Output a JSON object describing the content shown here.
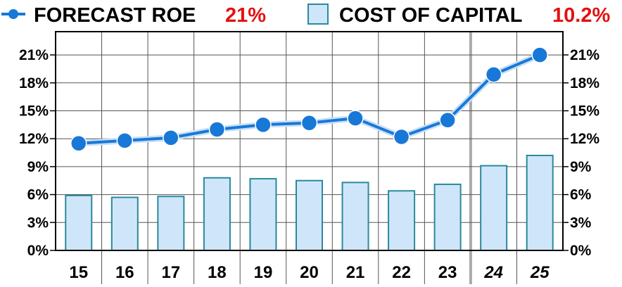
{
  "legend": {
    "roe_label": "FORECAST ROE",
    "roe_value": "21%",
    "coc_label": "COST OF CAPITAL",
    "coc_value": "10.2%"
  },
  "colors": {
    "line": "#1878d8",
    "marker": "#1878d8",
    "bar_fill": "#cfe6fa",
    "bar_stroke": "#2a8a9a",
    "highlight": "#e41010",
    "grid": "#555555",
    "forecast_divider": "#aaaaaa"
  },
  "chart_data": {
    "type": "bar",
    "categories": [
      "15",
      "16",
      "17",
      "18",
      "19",
      "20",
      "21",
      "22",
      "23",
      "24",
      "25"
    ],
    "forecast_categories": [
      "24",
      "25"
    ],
    "series": [
      {
        "name": "FORECAST ROE",
        "type": "line",
        "values": [
          11.5,
          11.8,
          12.1,
          13.0,
          13.5,
          13.7,
          14.2,
          12.2,
          14.0,
          18.9,
          21.0
        ]
      },
      {
        "name": "COST OF CAPITAL",
        "type": "bar",
        "values": [
          5.9,
          5.7,
          5.8,
          7.8,
          7.7,
          7.5,
          7.3,
          6.4,
          7.1,
          9.1,
          10.2
        ]
      }
    ],
    "ylim": [
      0,
      23.5
    ],
    "yticks": [
      0,
      3,
      6,
      9,
      12,
      15,
      18,
      21
    ],
    "ytick_labels": [
      "0%",
      "3%",
      "6%",
      "9%",
      "12%",
      "15%",
      "18%",
      "21%"
    ],
    "grid": true,
    "legend_position": "top"
  }
}
